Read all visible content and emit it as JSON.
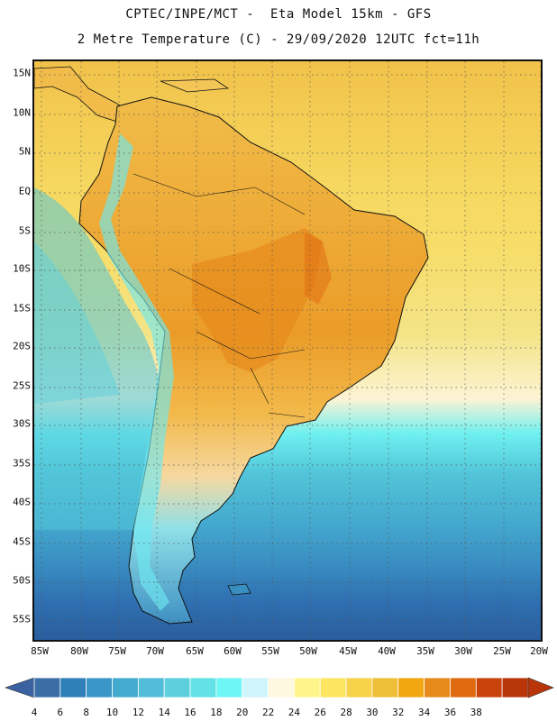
{
  "title": {
    "line1": "CPTEC/INPE/MCT -  Eta Model 15km - GFS",
    "line2": "2 Metre Temperature (C) - 29/09/2020 12UTC fct=11h"
  },
  "map": {
    "region": "South America",
    "variable": "2 Metre Temperature",
    "units": "C",
    "lat_labels": [
      "15N",
      "10N",
      "5N",
      "EQ",
      "5S",
      "10S",
      "15S",
      "20S",
      "25S",
      "30S",
      "35S",
      "40S",
      "45S",
      "50S",
      "55S"
    ],
    "lon_labels": [
      "85W",
      "80W",
      "75W",
      "70W",
      "65W",
      "60W",
      "55W",
      "50W",
      "45W",
      "40W",
      "35W",
      "30W",
      "25W",
      "20W"
    ]
  },
  "colorbar": {
    "labels": [
      "4",
      "6",
      "8",
      "10",
      "12",
      "14",
      "16",
      "18",
      "20",
      "22",
      "24",
      "26",
      "28",
      "30",
      "32",
      "34",
      "36",
      "38"
    ],
    "colors": [
      "#3c6ea6",
      "#2f7fb8",
      "#3a96c6",
      "#45aacf",
      "#52bdd8",
      "#5dd0de",
      "#62e2e6",
      "#6ef5f5",
      "#cff4fa",
      "#fff8e0",
      "#fff58a",
      "#fbe561",
      "#f6d34a",
      "#eebf3a",
      "#f1a612",
      "#e68a1c",
      "#df6a10",
      "#c9440a",
      "#b8350a"
    ],
    "under_color": "#3a62a0",
    "over_color": "#b8350a"
  }
}
